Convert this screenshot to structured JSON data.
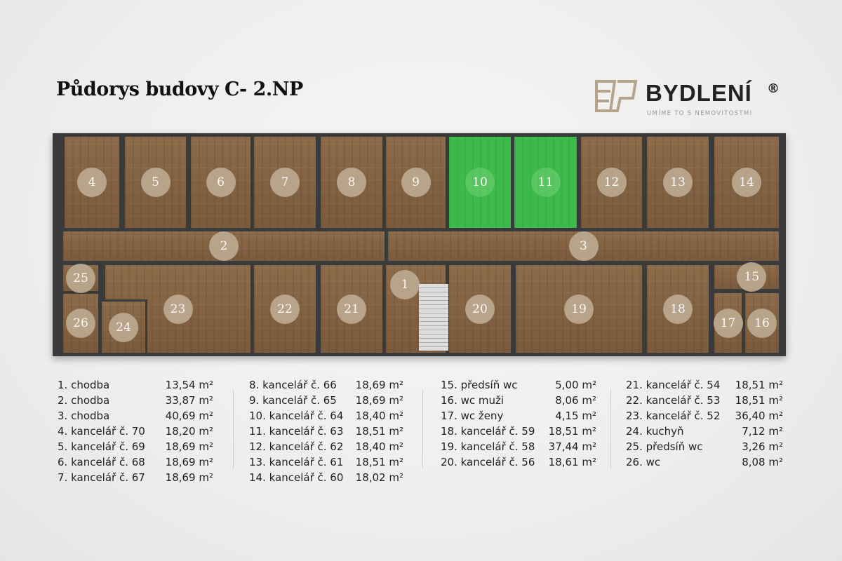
{
  "title": "Půdorys budovy C- 2.NP",
  "logo": {
    "brand": "BYDLENÍ",
    "registered": "®",
    "tagline": "UMÍME TO S NEMOVITOSTMI",
    "color": "#b5a48c"
  },
  "plan": {
    "highlight_color": "#3dbb4a",
    "highlighted_rooms": [
      "10",
      "11"
    ],
    "rooms": {
      "r1": "1",
      "r2": "2",
      "r3": "3",
      "r4": "4",
      "r5": "5",
      "r6": "6",
      "r7": "7",
      "r8": "8",
      "r9": "9",
      "r10": "10",
      "r11": "11",
      "r12": "12",
      "r13": "13",
      "r14": "14",
      "r15": "15",
      "r16": "16",
      "r17": "17",
      "r18": "18",
      "r19": "19",
      "r20": "20",
      "r21": "21",
      "r22": "22",
      "r23": "23",
      "r24": "24",
      "r25": "25",
      "r26": "26"
    }
  },
  "legend": {
    "unit": "m²",
    "columns": [
      [
        {
          "name": "1. chodba",
          "area": "13,54 m²"
        },
        {
          "name": "2. chodba",
          "area": "33,87 m²"
        },
        {
          "name": "3. chodba",
          "area": "40,69 m²"
        },
        {
          "name": "4. kancelář č. 70",
          "area": "18,20 m²"
        },
        {
          "name": "5. kancelář č. 69",
          "area": "18,69 m²"
        },
        {
          "name": "6. kancelář č. 68",
          "area": "18,69 m²"
        },
        {
          "name": "7. kancelář č. 67",
          "area": "18,69 m²"
        }
      ],
      [
        {
          "name": "8. kancelář č. 66",
          "area": "18,69 m²"
        },
        {
          "name": "9. kancelář č. 65",
          "area": "18,69 m²"
        },
        {
          "name": "10. kancelář č. 64",
          "area": "18,40 m²"
        },
        {
          "name": "11. kancelář č. 63",
          "area": "18,51 m²"
        },
        {
          "name": "12. kancelář č. 62",
          "area": "18,40 m²"
        },
        {
          "name": "13. kancelář č. 61",
          "area": "18,51 m²"
        },
        {
          "name": "14. kancelář č. 60",
          "area": "18,02 m²"
        }
      ],
      [
        {
          "name": "15. předsíň wc",
          "area": "5,00 m²"
        },
        {
          "name": "16. wc muži",
          "area": "8,06 m²"
        },
        {
          "name": "17. wc ženy",
          "area": "4,15 m²"
        },
        {
          "name": "18. kancelář č. 59",
          "area": "18,51 m²"
        },
        {
          "name": "19. kancelář č. 58",
          "area": "37,44 m²"
        },
        {
          "name": "20. kancelář č. 56",
          "area": "18,61 m²"
        }
      ],
      [
        {
          "name": "21. kancelář č. 54",
          "area": "18,51 m²"
        },
        {
          "name": "22. kancelář č. 53",
          "area": "18,51 m²"
        },
        {
          "name": "23. kancelář č. 52",
          "area": "36,40 m²"
        },
        {
          "name": "24. kuchyň",
          "area": "7,12 m²"
        },
        {
          "name": "25. předsíň wc",
          "area": "3,26 m²"
        },
        {
          "name": "26. wc",
          "area": "8,08 m²"
        }
      ]
    ]
  }
}
